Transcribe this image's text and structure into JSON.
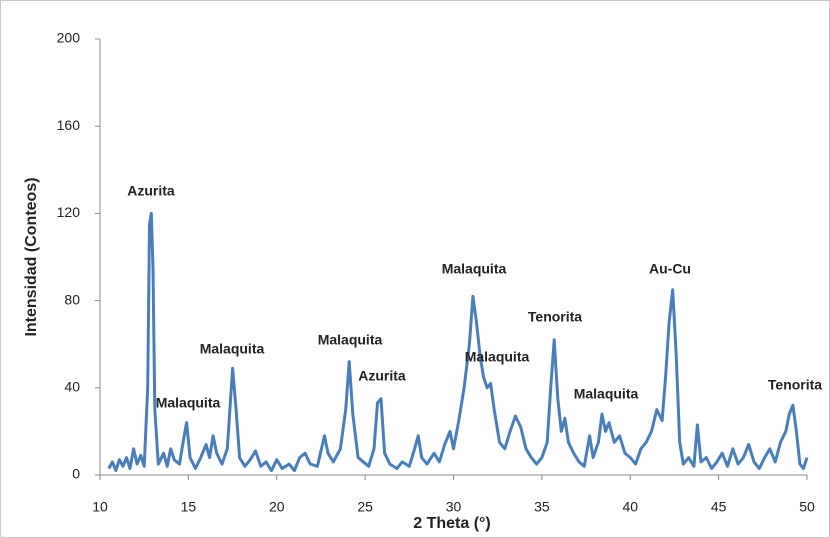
{
  "chart_data": {
    "type": "line",
    "xlabel": "2 Theta (°)",
    "ylabel": "Intensidad (Conteos)",
    "xlim": [
      10,
      50
    ],
    "xticks": [
      10,
      15,
      20,
      25,
      30,
      35,
      40,
      45,
      50
    ],
    "ylim": [
      0,
      200
    ],
    "yticks": [
      0,
      40,
      80,
      120,
      160,
      200
    ],
    "annotations": [
      "Azurita",
      "Malaquita",
      "Malaquita",
      "Malaquita",
      "Azurita",
      "Malaquita",
      "Malaquita",
      "Tenorita",
      "Malaquita",
      "Au-Cu",
      "Tenorita"
    ],
    "series": [
      {
        "color": "#4a7ebb",
        "x": [
          10.5,
          10.7,
          10.9,
          11.1,
          11.3,
          11.5,
          11.7,
          11.9,
          12.1,
          12.3,
          12.5,
          12.7,
          12.8,
          12.9,
          13.0,
          13.1,
          13.3,
          13.6,
          13.8,
          14.0,
          14.2,
          14.5,
          14.7,
          14.9,
          15.1,
          15.4,
          15.7,
          16.0,
          16.2,
          16.4,
          16.6,
          16.9,
          17.2,
          17.5,
          17.7,
          17.9,
          18.2,
          18.5,
          18.8,
          19.1,
          19.4,
          19.7,
          20.0,
          20.3,
          20.7,
          21.0,
          21.3,
          21.6,
          21.9,
          22.3,
          22.7,
          22.9,
          23.2,
          23.6,
          23.9,
          24.1,
          24.3,
          24.6,
          24.9,
          25.2,
          25.5,
          25.7,
          25.9,
          26.1,
          26.4,
          26.8,
          27.1,
          27.5,
          27.8,
          28.0,
          28.2,
          28.5,
          28.9,
          29.2,
          29.5,
          29.8,
          30.0,
          30.3,
          30.6,
          30.9,
          31.1,
          31.3,
          31.5,
          31.7,
          31.9,
          32.1,
          32.3,
          32.6,
          32.9,
          33.2,
          33.5,
          33.8,
          34.1,
          34.4,
          34.7,
          35.0,
          35.3,
          35.5,
          35.7,
          35.9,
          36.1,
          36.3,
          36.5,
          36.8,
          37.1,
          37.4,
          37.7,
          37.9,
          38.2,
          38.4,
          38.6,
          38.8,
          39.1,
          39.4,
          39.7,
          40.0,
          40.3,
          40.6,
          40.9,
          41.2,
          41.5,
          41.8,
          42.0,
          42.2,
          42.4,
          42.6,
          42.8,
          43.0,
          43.3,
          43.6,
          43.8,
          44.0,
          44.3,
          44.6,
          44.9,
          45.2,
          45.5,
          45.8,
          46.1,
          46.4,
          46.7,
          47.0,
          47.3,
          47.6,
          47.9,
          48.2,
          48.5,
          48.8,
          49.0,
          49.2,
          49.4,
          49.6,
          49.8,
          50.0
        ],
        "values": [
          3,
          6,
          2,
          7,
          4,
          8,
          3,
          12,
          5,
          9,
          4,
          40,
          115,
          120,
          95,
          30,
          5,
          10,
          4,
          12,
          7,
          5,
          15,
          24,
          8,
          3,
          8,
          14,
          8,
          18,
          10,
          5,
          12,
          49,
          30,
          8,
          4,
          7,
          11,
          4,
          6,
          2,
          7,
          3,
          5,
          2,
          8,
          10,
          5,
          4,
          18,
          10,
          6,
          12,
          30,
          52,
          28,
          8,
          6,
          4,
          12,
          33,
          35,
          10,
          5,
          3,
          6,
          4,
          12,
          18,
          8,
          5,
          10,
          6,
          14,
          20,
          12,
          25,
          40,
          60,
          82,
          70,
          55,
          45,
          40,
          42,
          30,
          15,
          12,
          20,
          27,
          22,
          12,
          8,
          5,
          8,
          15,
          40,
          62,
          35,
          20,
          26,
          15,
          10,
          6,
          4,
          18,
          8,
          15,
          28,
          20,
          24,
          15,
          18,
          10,
          8,
          5,
          12,
          15,
          20,
          30,
          25,
          45,
          70,
          85,
          55,
          15,
          5,
          8,
          4,
          23,
          6,
          8,
          3,
          6,
          10,
          4,
          12,
          5,
          8,
          14,
          6,
          3,
          8,
          12,
          6,
          15,
          20,
          28,
          32,
          20,
          5,
          3,
          8
        ]
      }
    ]
  }
}
